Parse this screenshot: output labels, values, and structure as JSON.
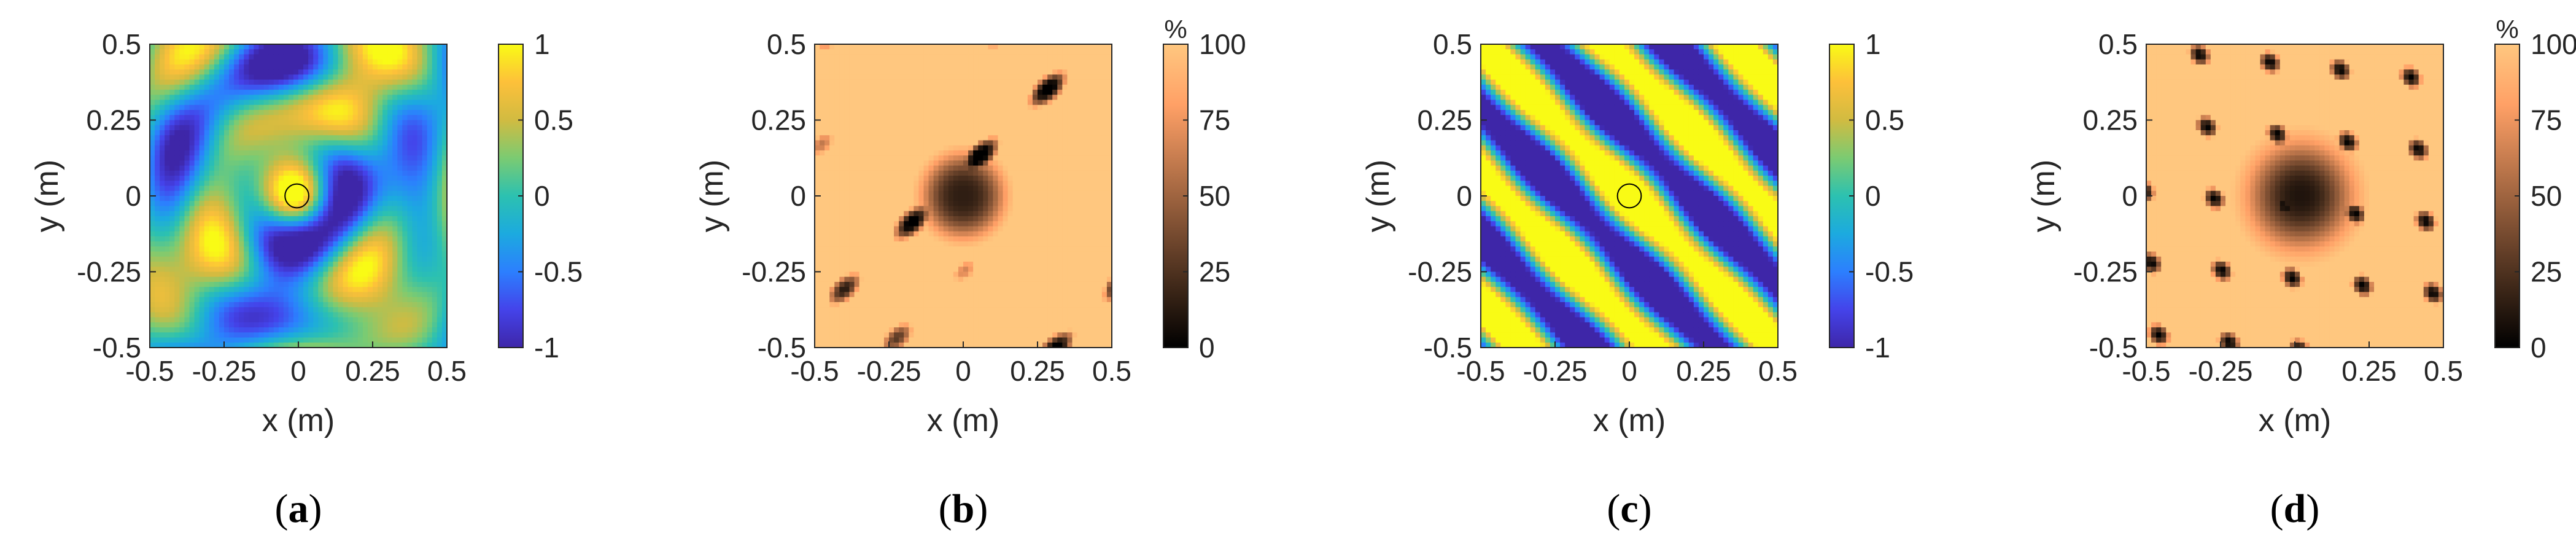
{
  "colormaps": {
    "parula": [
      "#3e26a8",
      "#4443ea",
      "#2c7ffe",
      "#1caadf",
      "#2cc1b0",
      "#7bcb72",
      "#d1bb41",
      "#fdc03a",
      "#f9fb15"
    ],
    "copper": [
      "#000000",
      "#3f2819",
      "#7f5033",
      "#bf784c",
      "#ffa066",
      "#ffc77f"
    ]
  },
  "chart_data": [
    {
      "panel": "a",
      "type": "heatmap",
      "caption": "(a)",
      "xlabel": "x (m)",
      "ylabel": "y (m)",
      "xticks": [
        "-0.5",
        "-0.25",
        "0",
        "0.25",
        "0.5"
      ],
      "yticks": [
        "0.5",
        "0.25",
        "0",
        "-0.25",
        "-0.5"
      ],
      "xlim": [
        -0.5,
        0.5
      ],
      "ylim": [
        -0.5,
        0.5
      ],
      "colormap": "parula",
      "clim": [
        -1,
        1
      ],
      "colorbar_ticks": [
        "1",
        "0.5",
        "0",
        "-0.5",
        "-1"
      ],
      "colorbar_unit": "",
      "marker": {
        "shape": "circle",
        "x": -0.005,
        "y": 0.0,
        "r": 0.04
      }
    },
    {
      "panel": "b",
      "type": "heatmap",
      "caption": "(b)",
      "xlabel": "x (m)",
      "ylabel": "y (m)",
      "xticks": [
        "-0.5",
        "-0.25",
        "0",
        "0.25",
        "0.5"
      ],
      "yticks": [
        "0.5",
        "0.25",
        "0",
        "-0.25",
        "-0.5"
      ],
      "xlim": [
        -0.5,
        0.5
      ],
      "ylim": [
        -0.5,
        0.5
      ],
      "colormap": "copper",
      "clim": [
        0,
        100
      ],
      "colorbar_ticks": [
        "100",
        "75",
        "50",
        "25",
        "0"
      ],
      "colorbar_unit": "%"
    },
    {
      "panel": "c",
      "type": "heatmap",
      "caption": "(c)",
      "xlabel": "x (m)",
      "ylabel": "y (m)",
      "xticks": [
        "-0.5",
        "-0.25",
        "0",
        "0.25",
        "0.5"
      ],
      "yticks": [
        "0.5",
        "0.25",
        "0",
        "-0.25",
        "-0.5"
      ],
      "xlim": [
        -0.5,
        0.5
      ],
      "ylim": [
        -0.5,
        0.5
      ],
      "colormap": "parula",
      "clim": [
        -1,
        1
      ],
      "colorbar_ticks": [
        "1",
        "0.5",
        "0",
        "-0.5",
        "-1"
      ],
      "colorbar_unit": "",
      "marker": {
        "shape": "circle",
        "x": 0.0,
        "y": 0.0,
        "r": 0.04
      }
    },
    {
      "panel": "d",
      "type": "heatmap",
      "caption": "(d)",
      "xlabel": "x (m)",
      "ylabel": "y (m)",
      "xticks": [
        "-0.5",
        "-0.25",
        "0",
        "0.25",
        "0.5"
      ],
      "yticks": [
        "0.5",
        "0.25",
        "0",
        "-0.25",
        "-0.5"
      ],
      "xlim": [
        -0.5,
        0.5
      ],
      "ylim": [
        -0.5,
        0.5
      ],
      "colormap": "copper",
      "clim": [
        0,
        100
      ],
      "colorbar_ticks": [
        "100",
        "75",
        "50",
        "25",
        "0"
      ],
      "colorbar_unit": "%"
    }
  ]
}
